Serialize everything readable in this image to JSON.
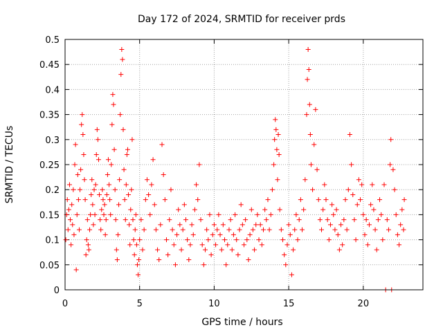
{
  "chart_data": {
    "type": "scatter",
    "title": "Day 172 of 2024, SRMTID for receiver prds",
    "xlabel": "GPS time / hours",
    "ylabel": "SRMTID / TECUs",
    "xlim": [
      0,
      24
    ],
    "ylim": [
      0,
      0.5
    ],
    "x_ticks": [
      0,
      5,
      10,
      15,
      20
    ],
    "x_tick_labels": [
      "0",
      "5",
      "10",
      "15",
      "20"
    ],
    "y_ticks": [
      0,
      0.05,
      0.1,
      0.15,
      0.2,
      0.25,
      0.3,
      0.35,
      0.4,
      0.45,
      0.5
    ],
    "y_tick_labels": [
      "0",
      "0.05",
      "0.1",
      "0.15",
      "0.2",
      "0.25",
      "0.3",
      "0.35",
      "0.4",
      "0.45",
      "0.5"
    ],
    "grid": true,
    "marker": "+",
    "marker_color": "#ff0000",
    "series": [
      {
        "name": "SRMTID",
        "points": [
          [
            0.05,
            0.1
          ],
          [
            0.1,
            0.15
          ],
          [
            0.15,
            0.18
          ],
          [
            0.2,
            0.12
          ],
          [
            0.25,
            0.16
          ],
          [
            0.3,
            0.21
          ],
          [
            0.35,
            0.14
          ],
          [
            0.4,
            0.09
          ],
          [
            0.45,
            0.17
          ],
          [
            0.5,
            0.13
          ],
          [
            0.55,
            0.2
          ],
          [
            0.6,
            0.11
          ],
          [
            0.65,
            0.25
          ],
          [
            0.7,
            0.29
          ],
          [
            0.75,
            0.04
          ],
          [
            0.8,
            0.15
          ],
          [
            0.85,
            0.23
          ],
          [
            0.9,
            0.18
          ],
          [
            0.95,
            0.12
          ],
          [
            1.0,
            0.2
          ],
          [
            1.05,
            0.24
          ],
          [
            1.1,
            0.33
          ],
          [
            1.15,
            0.35
          ],
          [
            1.2,
            0.31
          ],
          [
            1.25,
            0.27
          ],
          [
            1.3,
            0.22
          ],
          [
            1.35,
            0.18
          ],
          [
            1.4,
            0.07
          ],
          [
            1.45,
            0.1
          ],
          [
            1.5,
            0.14
          ],
          [
            1.55,
            0.09
          ],
          [
            1.6,
            0.08
          ],
          [
            1.65,
            0.12
          ],
          [
            1.7,
            0.15
          ],
          [
            1.75,
            0.19
          ],
          [
            1.8,
            0.22
          ],
          [
            1.85,
            0.17
          ],
          [
            1.9,
            0.13
          ],
          [
            1.95,
            0.2
          ],
          [
            2.0,
            0.15
          ],
          [
            2.05,
            0.21
          ],
          [
            2.1,
            0.27
          ],
          [
            2.15,
            0.32
          ],
          [
            2.2,
            0.3
          ],
          [
            2.25,
            0.26
          ],
          [
            2.3,
            0.19
          ],
          [
            2.35,
            0.14
          ],
          [
            2.4,
            0.12
          ],
          [
            2.45,
            0.16
          ],
          [
            2.5,
            0.2
          ],
          [
            2.55,
            0.18
          ],
          [
            2.6,
            0.15
          ],
          [
            2.65,
            0.17
          ],
          [
            2.7,
            0.11
          ],
          [
            2.75,
            0.14
          ],
          [
            2.8,
            0.19
          ],
          [
            2.85,
            0.23
          ],
          [
            2.9,
            0.26
          ],
          [
            2.95,
            0.21
          ],
          [
            3.0,
            0.18
          ],
          [
            3.05,
            0.15
          ],
          [
            3.1,
            0.25
          ],
          [
            3.15,
            0.33
          ],
          [
            3.2,
            0.39
          ],
          [
            3.25,
            0.37
          ],
          [
            3.3,
            0.28
          ],
          [
            3.35,
            0.2
          ],
          [
            3.4,
            0.14
          ],
          [
            3.45,
            0.08
          ],
          [
            3.5,
            0.06
          ],
          [
            3.55,
            0.11
          ],
          [
            3.6,
            0.17
          ],
          [
            3.65,
            0.22
          ],
          [
            3.7,
            0.35
          ],
          [
            3.75,
            0.43
          ],
          [
            3.8,
            0.48
          ],
          [
            3.85,
            0.46
          ],
          [
            3.9,
            0.32
          ],
          [
            3.95,
            0.24
          ],
          [
            4.0,
            0.18
          ],
          [
            4.05,
            0.14
          ],
          [
            4.1,
            0.21
          ],
          [
            4.15,
            0.27
          ],
          [
            4.2,
            0.28
          ],
          [
            4.25,
            0.19
          ],
          [
            4.3,
            0.13
          ],
          [
            4.35,
            0.09
          ],
          [
            4.4,
            0.16
          ],
          [
            4.45,
            0.2
          ],
          [
            4.5,
            0.3
          ],
          [
            4.55,
            0.14
          ],
          [
            4.6,
            0.1
          ],
          [
            4.65,
            0.07
          ],
          [
            4.7,
            0.12
          ],
          [
            4.75,
            0.15
          ],
          [
            4.8,
            0.09
          ],
          [
            4.85,
            0.05
          ],
          [
            4.9,
            0.03
          ],
          [
            4.95,
            0.06
          ],
          [
            5.0,
            0.1
          ],
          [
            5.1,
            0.14
          ],
          [
            5.2,
            0.08
          ],
          [
            5.3,
            0.12
          ],
          [
            5.4,
            0.18
          ],
          [
            5.5,
            0.22
          ],
          [
            5.6,
            0.19
          ],
          [
            5.7,
            0.15
          ],
          [
            5.8,
            0.21
          ],
          [
            5.9,
            0.26
          ],
          [
            6.0,
            0.17
          ],
          [
            6.1,
            0.12
          ],
          [
            6.2,
            0.08
          ],
          [
            6.3,
            0.06
          ],
          [
            6.4,
            0.13
          ],
          [
            6.5,
            0.29
          ],
          [
            6.6,
            0.23
          ],
          [
            6.7,
            0.18
          ],
          [
            6.8,
            0.1
          ],
          [
            6.9,
            0.07
          ],
          [
            7.0,
            0.14
          ],
          [
            7.1,
            0.2
          ],
          [
            7.2,
            0.12
          ],
          [
            7.3,
            0.09
          ],
          [
            7.4,
            0.05
          ],
          [
            7.5,
            0.11
          ],
          [
            7.6,
            0.16
          ],
          [
            7.7,
            0.13
          ],
          [
            7.8,
            0.08
          ],
          [
            7.9,
            0.12
          ],
          [
            8.0,
            0.17
          ],
          [
            8.1,
            0.14
          ],
          [
            8.2,
            0.1
          ],
          [
            8.3,
            0.06
          ],
          [
            8.4,
            0.09
          ],
          [
            8.5,
            0.13
          ],
          [
            8.6,
            0.11
          ],
          [
            8.7,
            0.16
          ],
          [
            8.8,
            0.21
          ],
          [
            8.9,
            0.18
          ],
          [
            9.0,
            0.25
          ],
          [
            9.1,
            0.14
          ],
          [
            9.2,
            0.09
          ],
          [
            9.3,
            0.05
          ],
          [
            9.4,
            0.08
          ],
          [
            9.5,
            0.12
          ],
          [
            9.6,
            0.1
          ],
          [
            9.7,
            0.15
          ],
          [
            9.8,
            0.07
          ],
          [
            9.9,
            0.11
          ],
          [
            10.0,
            0.13
          ],
          [
            10.1,
            0.09
          ],
          [
            10.2,
            0.12
          ],
          [
            10.3,
            0.15
          ],
          [
            10.4,
            0.11
          ],
          [
            10.5,
            0.08
          ],
          [
            10.6,
            0.13
          ],
          [
            10.7,
            0.1
          ],
          [
            10.8,
            0.05
          ],
          [
            10.9,
            0.09
          ],
          [
            11.0,
            0.12
          ],
          [
            11.1,
            0.14
          ],
          [
            11.2,
            0.08
          ],
          [
            11.3,
            0.11
          ],
          [
            11.4,
            0.15
          ],
          [
            11.5,
            0.1
          ],
          [
            11.6,
            0.07
          ],
          [
            11.7,
            0.12
          ],
          [
            11.8,
            0.17
          ],
          [
            11.9,
            0.13
          ],
          [
            12.0,
            0.09
          ],
          [
            12.1,
            0.14
          ],
          [
            12.2,
            0.1
          ],
          [
            12.3,
            0.06
          ],
          [
            12.4,
            0.11
          ],
          [
            12.5,
            0.16
          ],
          [
            12.6,
            0.12
          ],
          [
            12.7,
            0.08
          ],
          [
            12.8,
            0.13
          ],
          [
            12.9,
            0.15
          ],
          [
            13.0,
            0.1
          ],
          [
            13.1,
            0.13
          ],
          [
            13.2,
            0.09
          ],
          [
            13.3,
            0.12
          ],
          [
            13.4,
            0.16
          ],
          [
            13.5,
            0.14
          ],
          [
            13.6,
            0.18
          ],
          [
            13.7,
            0.12
          ],
          [
            13.8,
            0.15
          ],
          [
            13.9,
            0.2
          ],
          [
            14.0,
            0.25
          ],
          [
            14.05,
            0.3
          ],
          [
            14.1,
            0.34
          ],
          [
            14.15,
            0.32
          ],
          [
            14.2,
            0.28
          ],
          [
            14.25,
            0.22
          ],
          [
            14.3,
            0.31
          ],
          [
            14.35,
            0.27
          ],
          [
            14.4,
            0.16
          ],
          [
            14.5,
            0.12
          ],
          [
            14.6,
            0.1
          ],
          [
            14.7,
            0.07
          ],
          [
            14.8,
            0.05
          ],
          [
            14.9,
            0.09
          ],
          [
            15.0,
            0.13
          ],
          [
            15.1,
            0.11
          ],
          [
            15.2,
            0.03
          ],
          [
            15.3,
            0.08
          ],
          [
            15.4,
            0.12
          ],
          [
            15.5,
            0.15
          ],
          [
            15.6,
            0.1
          ],
          [
            15.7,
            0.14
          ],
          [
            15.8,
            0.18
          ],
          [
            15.9,
            0.12
          ],
          [
            16.0,
            0.16
          ],
          [
            16.1,
            0.22
          ],
          [
            16.2,
            0.35
          ],
          [
            16.25,
            0.42
          ],
          [
            16.3,
            0.48
          ],
          [
            16.35,
            0.44
          ],
          [
            16.4,
            0.37
          ],
          [
            16.45,
            0.31
          ],
          [
            16.5,
            0.25
          ],
          [
            16.6,
            0.2
          ],
          [
            16.7,
            0.29
          ],
          [
            16.8,
            0.36
          ],
          [
            16.9,
            0.24
          ],
          [
            17.0,
            0.18
          ],
          [
            17.1,
            0.14
          ],
          [
            17.2,
            0.12
          ],
          [
            17.3,
            0.16
          ],
          [
            17.4,
            0.21
          ],
          [
            17.5,
            0.18
          ],
          [
            17.6,
            0.14
          ],
          [
            17.7,
            0.1
          ],
          [
            17.8,
            0.13
          ],
          [
            17.9,
            0.17
          ],
          [
            18.0,
            0.15
          ],
          [
            18.1,
            0.12
          ],
          [
            18.2,
            0.16
          ],
          [
            18.3,
            0.11
          ],
          [
            18.4,
            0.08
          ],
          [
            18.5,
            0.13
          ],
          [
            18.6,
            0.09
          ],
          [
            18.7,
            0.14
          ],
          [
            18.8,
            0.18
          ],
          [
            18.9,
            0.12
          ],
          [
            19.0,
            0.2
          ],
          [
            19.1,
            0.31
          ],
          [
            19.2,
            0.25
          ],
          [
            19.3,
            0.19
          ],
          [
            19.4,
            0.14
          ],
          [
            19.5,
            0.1
          ],
          [
            19.6,
            0.17
          ],
          [
            19.7,
            0.22
          ],
          [
            19.8,
            0.18
          ],
          [
            19.9,
            0.21
          ],
          [
            20.0,
            0.15
          ],
          [
            20.1,
            0.11
          ],
          [
            20.2,
            0.14
          ],
          [
            20.3,
            0.09
          ],
          [
            20.4,
            0.13
          ],
          [
            20.5,
            0.17
          ],
          [
            20.6,
            0.21
          ],
          [
            20.7,
            0.16
          ],
          [
            20.8,
            0.12
          ],
          [
            20.9,
            0.08
          ],
          [
            21.0,
            0.14
          ],
          [
            21.1,
            0.18
          ],
          [
            21.2,
            0.15
          ],
          [
            21.3,
            0.1
          ],
          [
            21.4,
            0.21
          ],
          [
            21.5,
            0.0
          ],
          [
            21.6,
            0.14
          ],
          [
            21.7,
            0.12
          ],
          [
            21.8,
            0.25
          ],
          [
            21.85,
            0.3
          ],
          [
            21.9,
            0.0
          ],
          [
            22.0,
            0.24
          ],
          [
            22.1,
            0.2
          ],
          [
            22.2,
            0.15
          ],
          [
            22.3,
            0.11
          ],
          [
            22.4,
            0.09
          ],
          [
            22.5,
            0.13
          ],
          [
            22.6,
            0.16
          ],
          [
            22.7,
            0.12
          ],
          [
            22.75,
            0.18
          ]
        ]
      }
    ]
  }
}
